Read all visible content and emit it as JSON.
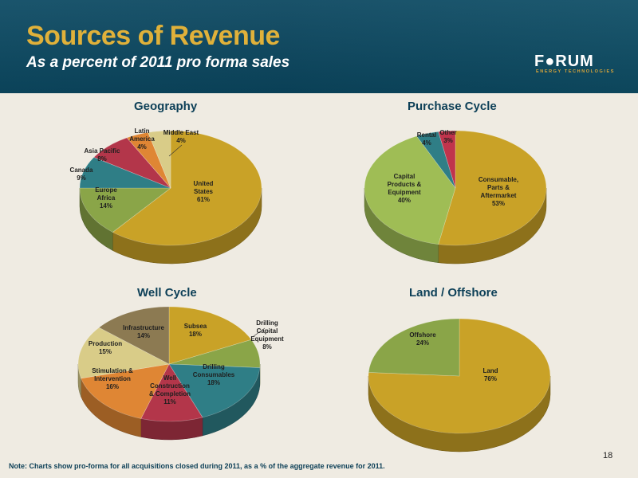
{
  "header": {
    "title": "Sources of Revenue",
    "subtitle": "As a percent of 2011 pro forma sales",
    "logo_word": "F●RUM",
    "logo_sub": "ENERGY TECHNOLOGIES"
  },
  "footnote": "Note: Charts show pro-forma for all acquisitions closed during 2011, as a % of the aggregate revenue for 2011.",
  "page_number": "18",
  "chart_data": [
    {
      "type": "pie",
      "title": "Geography",
      "slices": [
        {
          "label": [
            "United",
            "States",
            "61%"
          ],
          "value": 61,
          "color": "#c9a227"
        },
        {
          "label": [
            "Europe",
            "Africa",
            "14%"
          ],
          "value": 14,
          "color": "#8aa548"
        },
        {
          "label": [
            "Canada",
            "9%"
          ],
          "value": 9,
          "color": "#2f7e86"
        },
        {
          "label": [
            "Asia Pacific",
            "8%"
          ],
          "value": 8,
          "color": "#b3364a"
        },
        {
          "label": [
            "Latin",
            "America",
            "4%"
          ],
          "value": 4,
          "color": "#df8634"
        },
        {
          "label": [
            "Middle East",
            "4%"
          ],
          "value": 4,
          "color": "#d9cc88"
        }
      ]
    },
    {
      "type": "pie",
      "title": "Purchase Cycle",
      "slices": [
        {
          "label": [
            "Consumable,",
            "Parts &",
            "Aftermarket",
            "53%"
          ],
          "value": 53,
          "color": "#c9a227"
        },
        {
          "label": [
            "Capital",
            "Products &",
            "Equipment",
            "40%"
          ],
          "value": 40,
          "color": "#9fbd55"
        },
        {
          "label": [
            "Rental",
            "4%"
          ],
          "value": 4,
          "color": "#2f7e86"
        },
        {
          "label": [
            "Other",
            "3%"
          ],
          "value": 3,
          "color": "#c0344c"
        }
      ]
    },
    {
      "type": "pie",
      "title": "Well Cycle",
      "slices": [
        {
          "label": [
            "Subsea",
            "18%"
          ],
          "value": 18,
          "color": "#c9a227"
        },
        {
          "label": [
            "Drilling",
            "Capital",
            "Equipment",
            "8%"
          ],
          "value": 8,
          "color": "#8aa548"
        },
        {
          "label": [
            "Drilling",
            "Consumables",
            "18%"
          ],
          "value": 18,
          "color": "#2f7e86"
        },
        {
          "label": [
            "Well",
            "Construction",
            "& Completion",
            "11%"
          ],
          "value": 11,
          "color": "#b3364a"
        },
        {
          "label": [
            "Stimulation &",
            "Intervention",
            "16%"
          ],
          "value": 16,
          "color": "#df8634"
        },
        {
          "label": [
            "Production",
            "15%"
          ],
          "value": 15,
          "color": "#d9cc88"
        },
        {
          "label": [
            "Infrastructure",
            "14%"
          ],
          "value": 14,
          "color": "#8c7a52"
        }
      ]
    },
    {
      "type": "pie",
      "title": "Land / Offshore",
      "slices": [
        {
          "label": [
            "Land",
            "76%"
          ],
          "value": 76,
          "color": "#c9a227"
        },
        {
          "label": [
            "Offshore",
            "24%"
          ],
          "value": 24,
          "color": "#8aa548"
        }
      ]
    }
  ]
}
